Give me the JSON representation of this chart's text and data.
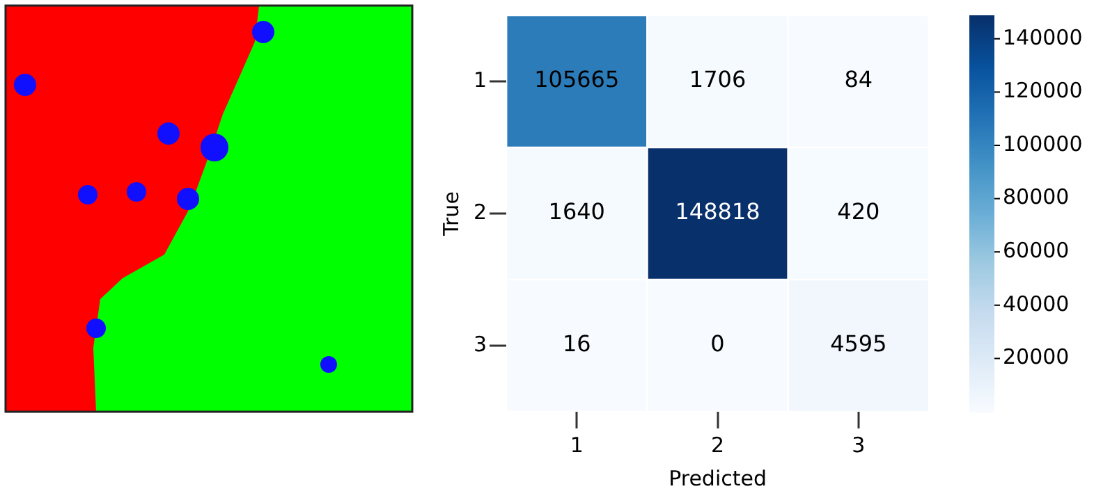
{
  "chart_data": {
    "type": "heatmap",
    "xlabel": "Predicted",
    "ylabel": "True",
    "categories": [
      "1",
      "2",
      "3"
    ],
    "y_categories": [
      "1",
      "2",
      "3"
    ],
    "cells": [
      [
        105665,
        1706,
        84
      ],
      [
        1640,
        148818,
        420
      ],
      [
        16,
        0,
        4595
      ]
    ],
    "clim": [
      0,
      148818
    ],
    "cticks": [
      20000,
      40000,
      60000,
      80000,
      100000,
      120000,
      140000
    ],
    "data_labels": true
  }
}
